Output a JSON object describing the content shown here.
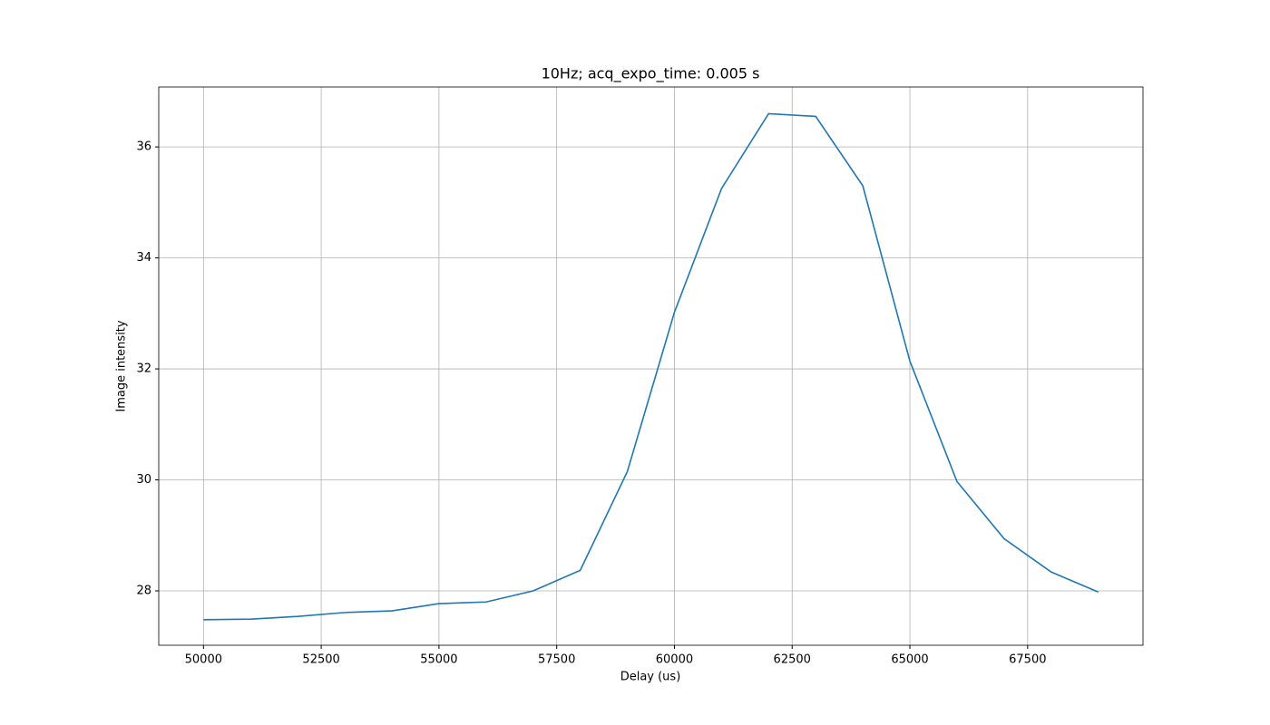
{
  "chart_data": {
    "type": "line",
    "title": "10Hz; acq_expo_time: 0.005 s",
    "x_label": "Delay (us)",
    "y_label": "Image intensity",
    "x": [
      50000,
      51000,
      52000,
      53000,
      54000,
      55000,
      56000,
      57000,
      58000,
      59000,
      60000,
      61000,
      62000,
      63000,
      64000,
      65000,
      66000,
      67000,
      68000,
      69000
    ],
    "series": [
      {
        "color": "#1f77b4",
        "values": [
          27.48,
          27.49,
          27.54,
          27.61,
          27.64,
          27.77,
          27.8,
          28.0,
          28.37,
          30.15,
          33.02,
          35.25,
          36.6,
          36.55,
          35.3,
          32.14,
          29.97,
          28.94,
          28.34,
          27.98
        ]
      }
    ],
    "xlim": [
      49050,
      69950
    ],
    "ylim": [
      27.02,
      37.08
    ],
    "xticks": [
      50000,
      52500,
      55000,
      57500,
      60000,
      62500,
      65000,
      67500
    ],
    "yticks": [
      28,
      30,
      32,
      34,
      36
    ],
    "grid": true
  }
}
